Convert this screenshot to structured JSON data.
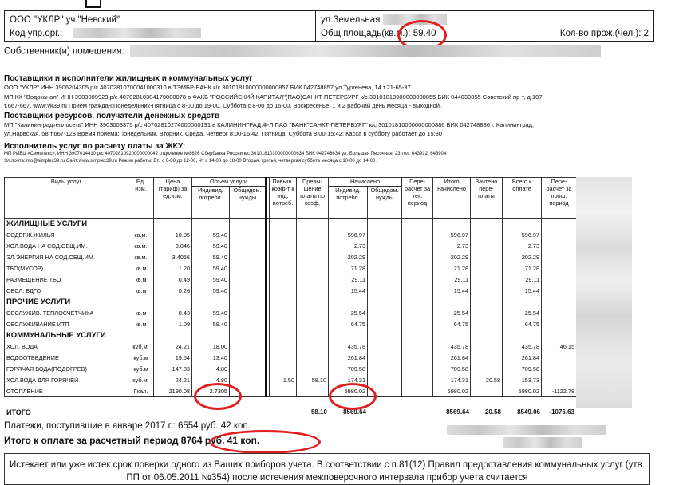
{
  "header": {
    "org": "ООО \"УКЛР\" уч.\"Невский\"",
    "org_code_label": "Код упр.орг.:",
    "street": "ул.Земельная",
    "area_label": "Общ.площадь(кв.м.):",
    "area_value": "59.40",
    "residents_label": "Кол-во прож.(чел.):",
    "residents_value": "2",
    "owner_label": "Собственник(и) помещения:"
  },
  "providers": {
    "title": "Поставщики и исполнители жилищных и коммунальных услуг",
    "lines": [
      "ООО \"УКЛР\" ИНН 3906204305 р/с 40702810700041000310 в ТЭМБР-БАНК к/с 30101810000000000857 БИК 042748857 ул.Тургенева, 14 т.21-65-37",
      "МП КХ \"Водоканал\" ИНН 3903009923 р/с 40702810304170000078 в ФАКБ \"РОССИЙСКИЙ КАПИТАЛ\"(ПАО)САНКТ-ПЕТЕРБУРГ к/с 30101810900000000855 БИК 044030855 Советский пр-т, д.107",
      "т.667-667, www.vk39.ru Прием граждан:Понедельник-Пятница с 8-00 до 19-00. Суббота с 8-00 до 16-00. Воскресенье, 1 и 2 рабочий день месяца - выходной."
    ]
  },
  "resources": {
    "title": "Поставщики ресурсов, получатели денежных средств",
    "lines": [
      "МП \"Калининградтеплосеть\" ИНН 3903003375 р/с 40702810274000000191 в КАЛИНИНГРАД.Ф-Л ПАО \"БАНК\"САНКТ-ПЕТЕРБУРГ\" к/с 30101810000000000886 БИК 042748886 г. Калининград,",
      "ул.Нарвская, 58 т.667-123 Время приема:Понедельник, Вторник, Среда, Четверг  8:00-16:42, Пятница, Суббота 8:00-15:42; Касса в субботу работает до 15:30"
    ]
  },
  "executor": {
    "title": "Исполнитель услуг по расчету платы за ЖКУ:",
    "lines": [
      "МП РИВЦ «Симплекс», ИНН 3907014410 р/с 40702810920000000042 отделение №8626 Сбербанка России к/с 30101810100000000634 БИК 042748634 ул. Большая Песочная, 23 тел. 643912, 643904",
      "Эл.почта:info@simplex39.ru Сайт:www.simplex39.ru Режим работы: Вт.: с 8-00 до 12-00, Чт с 14-00 до 18-00 Вторая, третья, четвертая суббота месяца с 10-00 до 14-00."
    ]
  },
  "table": {
    "headers": {
      "service": "Виды услуг",
      "unit": "Ед. изм.",
      "price": "Цена (тариф) за ед.изм.",
      "volume": "Объем услуги",
      "vol_ind": "Индивид. потребл.",
      "vol_common": "Общедом. нужды",
      "coef": "Повыш. коэф-т к инд. потреб.",
      "excess": "Превы-шение платы по коэф.",
      "charged": "Начислено",
      "ch_ind": "Индивид. потребл.",
      "ch_common": "Общедом. нужды",
      "recalc": "Пере-расчет за тек. период",
      "total": "Итого начислено",
      "offset": "Зачтено пере-платы",
      "to_pay": "Всего к оплате",
      "recalc_prev": "Пере-расчет за прош. период"
    },
    "rows": [
      {
        "section": "ЖИЛИЩНЫЕ УСЛУГИ"
      },
      {
        "name": "СОДЕРЖ.ЖИЛЬЯ",
        "unit": "кв.м.",
        "price": "10.05",
        "vol": "59.40",
        "ch": "596.97",
        "total": "596.97",
        "pay": "596.97"
      },
      {
        "name": "ХОЛ.ВОДА НА СОД.ОБЩ.ИМ.",
        "unit": "кв.м.",
        "price": "0.046",
        "vol": "59.40",
        "ch": "2.73",
        "total": "2.73",
        "pay": "2.73"
      },
      {
        "name": "ЭЛ.ЭНЕРГИЯ НА СОД.ОБЩ.ИМ.",
        "unit": "кв.м.",
        "price": "3.4056",
        "vol": "59.40",
        "ch": "202.29",
        "total": "202.29",
        "pay": "202.29"
      },
      {
        "name": "ТБО(МУСОР)",
        "unit": "кв.м",
        "price": "1.20",
        "vol": "59.40",
        "ch": "71.28",
        "total": "71.28",
        "pay": "71.28"
      },
      {
        "name": "РАЗМЕЩЕНИЕ ТБО",
        "unit": "кв.м",
        "price": "0.49",
        "vol": "59.40",
        "ch": "29.11",
        "total": "29.11",
        "pay": "29.11"
      },
      {
        "name": "ОБСЛ. ВДГО",
        "unit": "кв.м",
        "price": "0.26",
        "vol": "59.40",
        "ch": "15.44",
        "total": "15.44",
        "pay": "15.44"
      },
      {
        "section": "ПРОЧИЕ УСЛУГИ"
      },
      {
        "name": "ОБСЛУЖИВ. ТЕПЛОСЧЕТЧИКА",
        "unit": "кв.м",
        "price": "0.43",
        "vol": "59.40",
        "ch": "25.54",
        "total": "25.54",
        "pay": "25.54"
      },
      {
        "name": "ОБСЛУЖИВАНИЕ ИТП",
        "unit": "кв.м",
        "price": "1.09",
        "vol": "59.40",
        "ch": "64.75",
        "total": "64.75",
        "pay": "64.75"
      },
      {
        "section": "КОММУНАЛЬНЫЕ УСЛУГИ"
      },
      {
        "name": "ХОЛ. ВОДА",
        "unit": "куб.м.",
        "price": "24.21",
        "vol": "18.00",
        "ch": "435.78",
        "total": "435.78",
        "pay": "435.78",
        "prev": "46.15"
      },
      {
        "name": "ВОДООТВЕДЕНИЕ",
        "unit": "куб.м",
        "price": "19.54",
        "vol": "13.40",
        "ch": "261.84",
        "total": "261.84",
        "pay": "261.84"
      },
      {
        "name": "ГОРЯЧАЯ ВОДА(ПОДОГРЕВ)",
        "unit": "куб.м",
        "price": "147.83",
        "vol": "4.80",
        "ch": "709.58",
        "total": "709.58",
        "pay": "709.58"
      },
      {
        "name": "ХОЛ.ВОДА ДЛЯ ГОРЯЧЕЙ",
        "unit": "куб.м.",
        "price": "24.21",
        "vol": "4.80",
        "coef": "1.50",
        "excess": "58.10",
        "ch": "174.31",
        "total": "174.31",
        "offset": "20.58",
        "pay": "153.73"
      },
      {
        "name": "ОТОПЛЕНИЕ",
        "unit": "Гкал.",
        "price": "2190.08",
        "vol": "2.7305",
        "ch": "5980.02",
        "total": "5980.02",
        "pay": "5980.02",
        "prev": "-1122.78"
      }
    ],
    "totals": {
      "label": "ИТОГО",
      "excess": "58.10",
      "ch": "8569.64",
      "total": "8569.64",
      "offset": "20.58",
      "pay": "8549.06",
      "prev": "-1076.63"
    }
  },
  "payments": {
    "received_label": "Платежи, поступившие в январе 2017 г.:",
    "received_value": "6554 руб. 42 коп.",
    "due_label": "Итого к оплате за расчетный период",
    "due_value": "8764 руб. 41 коп."
  },
  "notice": {
    "text": "Истекает или уже истек срок поверки одного из Ваших приборов учета. В соответствии с п.81(12) Правил предоставления коммунальных услуг (утв. ПП от 06.05.2011 №354) после истечения межповерочного интервала прибор учета считается"
  },
  "colors": {
    "highlight_circle": "#e02020"
  }
}
